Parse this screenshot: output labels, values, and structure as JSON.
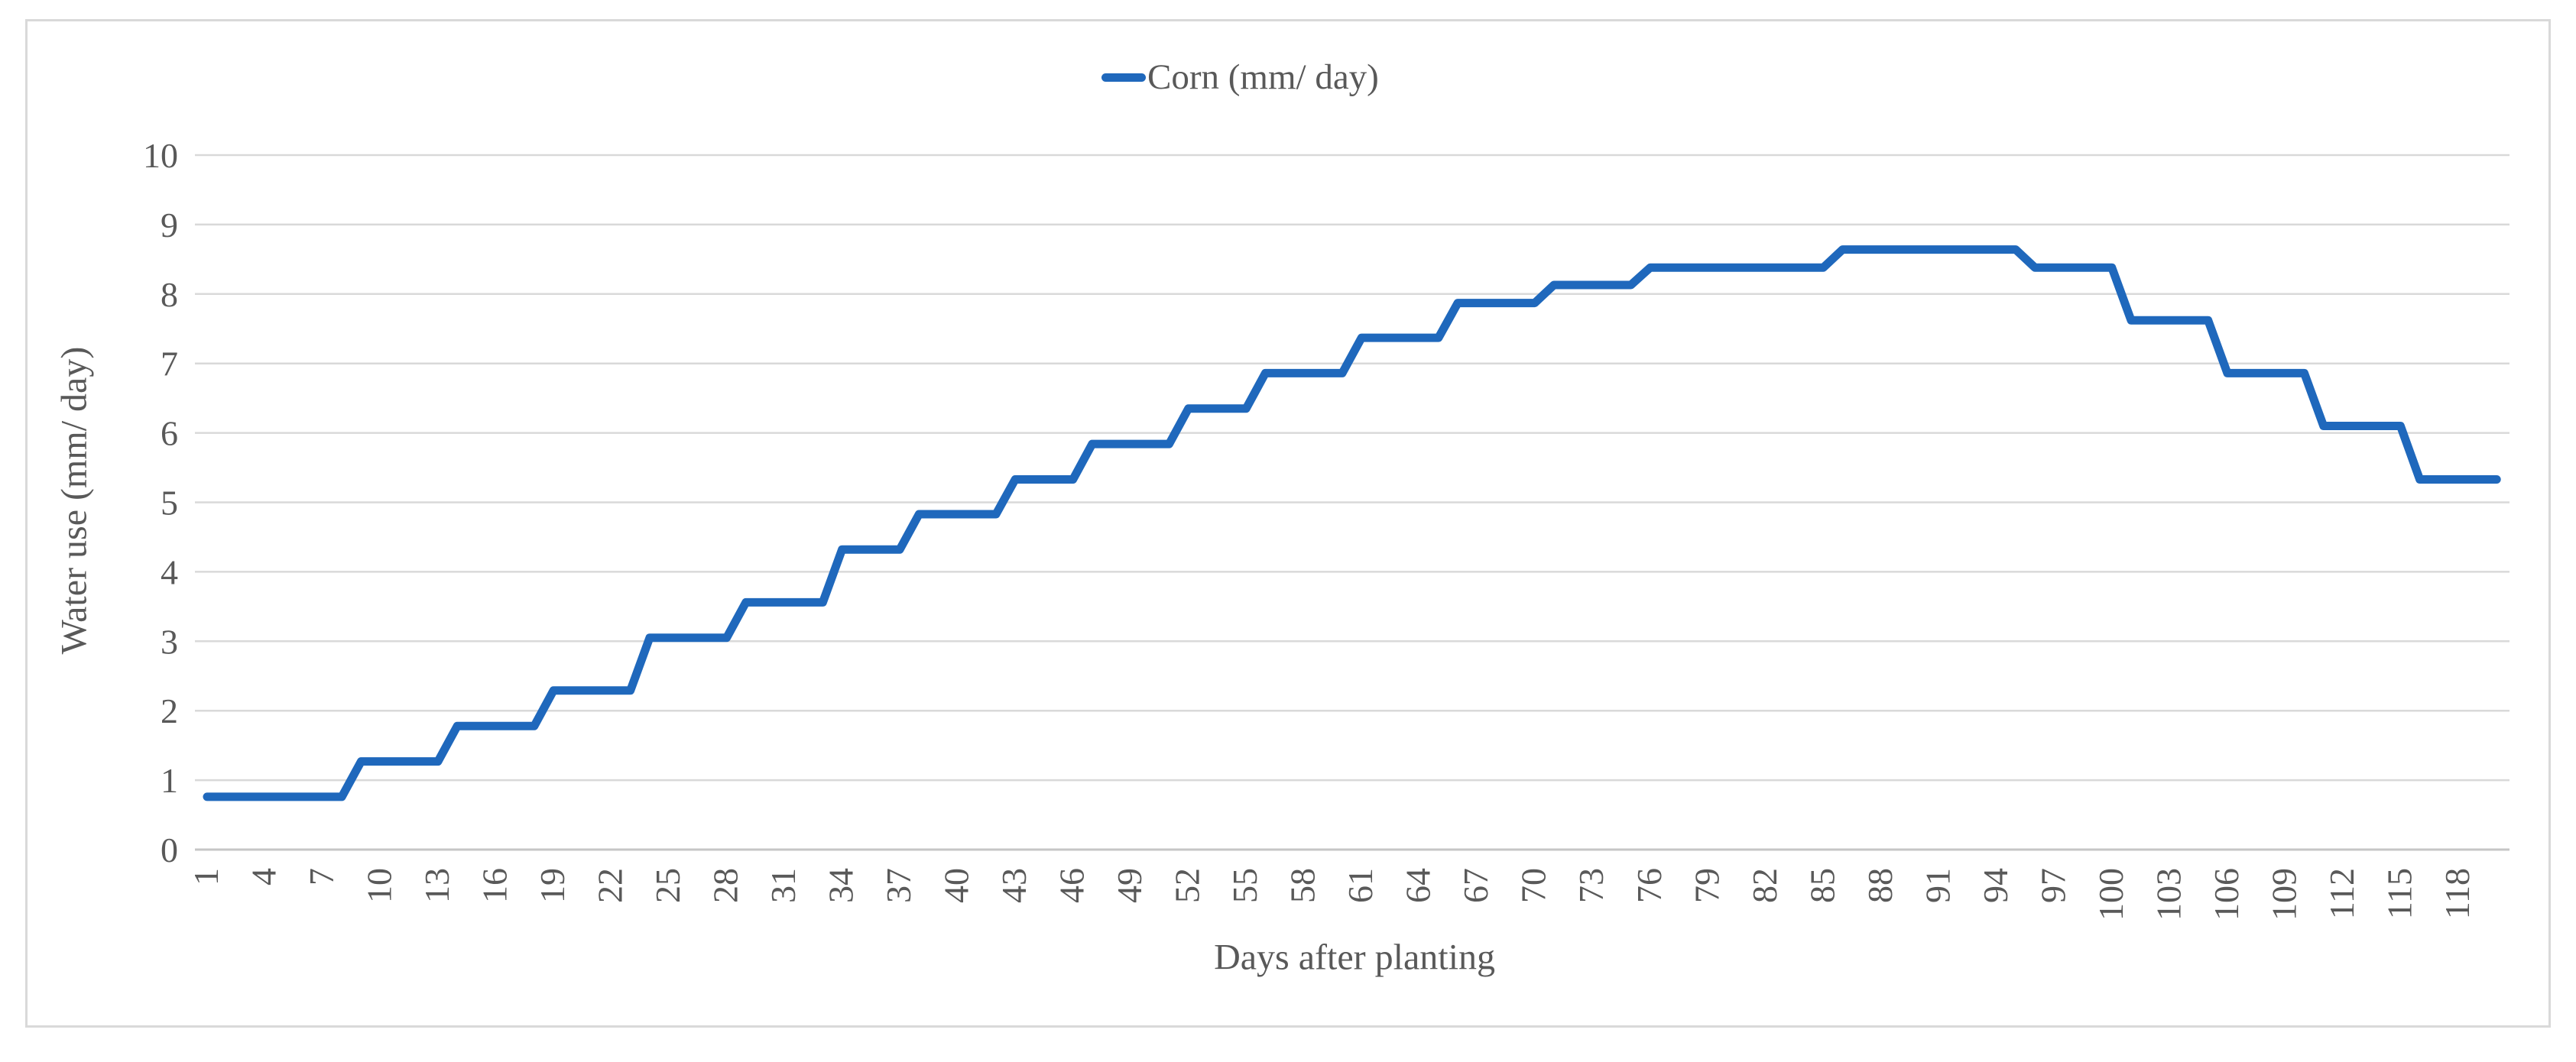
{
  "chart": {
    "legend_label": "Corn (mm/ day)",
    "y_title": "Water use (mm/ day)",
    "x_title": "Days after planting"
  },
  "chart_data": {
    "type": "line",
    "title": "",
    "xlabel": "Days after planting",
    "ylabel": "Water use (mm/ day)",
    "legend": [
      "Corn (mm/ day)"
    ],
    "legend_position": "top-center",
    "grid": true,
    "ylim": [
      0,
      10
    ],
    "y_ticks": [
      0,
      1,
      2,
      3,
      4,
      5,
      6,
      7,
      8,
      9,
      10
    ],
    "x_range": [
      1,
      120
    ],
    "x_tick_labels": [
      "1",
      "4",
      "7",
      "10",
      "13",
      "16",
      "19",
      "22",
      "25",
      "28",
      "31",
      "34",
      "37",
      "40",
      "43",
      "46",
      "49",
      "52",
      "55",
      "58",
      "61",
      "64",
      "67",
      "70",
      "73",
      "76",
      "79",
      "82",
      "85",
      "88",
      "91",
      "94",
      "97",
      "100",
      "103",
      "106",
      "109",
      "112",
      "115",
      "118"
    ],
    "series": [
      {
        "name": "Corn (mm/ day)",
        "color": "#1f68bc",
        "stages": [
          {
            "from_day": 1,
            "to_day": 8,
            "value": 0.76
          },
          {
            "from_day": 9,
            "to_day": 13,
            "value": 1.27
          },
          {
            "from_day": 14,
            "to_day": 18,
            "value": 1.78
          },
          {
            "from_day": 19,
            "to_day": 23,
            "value": 2.29
          },
          {
            "from_day": 24,
            "to_day": 28,
            "value": 3.05
          },
          {
            "from_day": 29,
            "to_day": 33,
            "value": 3.56
          },
          {
            "from_day": 34,
            "to_day": 37,
            "value": 4.32
          },
          {
            "from_day": 38,
            "to_day": 42,
            "value": 4.83
          },
          {
            "from_day": 43,
            "to_day": 46,
            "value": 5.33
          },
          {
            "from_day": 47,
            "to_day": 51,
            "value": 5.84
          },
          {
            "from_day": 52,
            "to_day": 55,
            "value": 6.35
          },
          {
            "from_day": 56,
            "to_day": 60,
            "value": 6.86
          },
          {
            "from_day": 61,
            "to_day": 65,
            "value": 7.37
          },
          {
            "from_day": 66,
            "to_day": 70,
            "value": 7.87
          },
          {
            "from_day": 71,
            "to_day": 75,
            "value": 8.13
          },
          {
            "from_day": 76,
            "to_day": 85,
            "value": 8.38
          },
          {
            "from_day": 86,
            "to_day": 95,
            "value": 8.64
          },
          {
            "from_day": 96,
            "to_day": 100,
            "value": 8.38
          },
          {
            "from_day": 101,
            "to_day": 105,
            "value": 7.62
          },
          {
            "from_day": 106,
            "to_day": 110,
            "value": 6.86
          },
          {
            "from_day": 111,
            "to_day": 115,
            "value": 6.1
          },
          {
            "from_day": 116,
            "to_day": 120,
            "value": 5.33
          }
        ]
      }
    ],
    "colors": {
      "line": "#1f68bc",
      "grid": "#d9d9d9",
      "axis": "#c6c6c6",
      "text": "#595959",
      "border": "#d9d9d9"
    }
  }
}
